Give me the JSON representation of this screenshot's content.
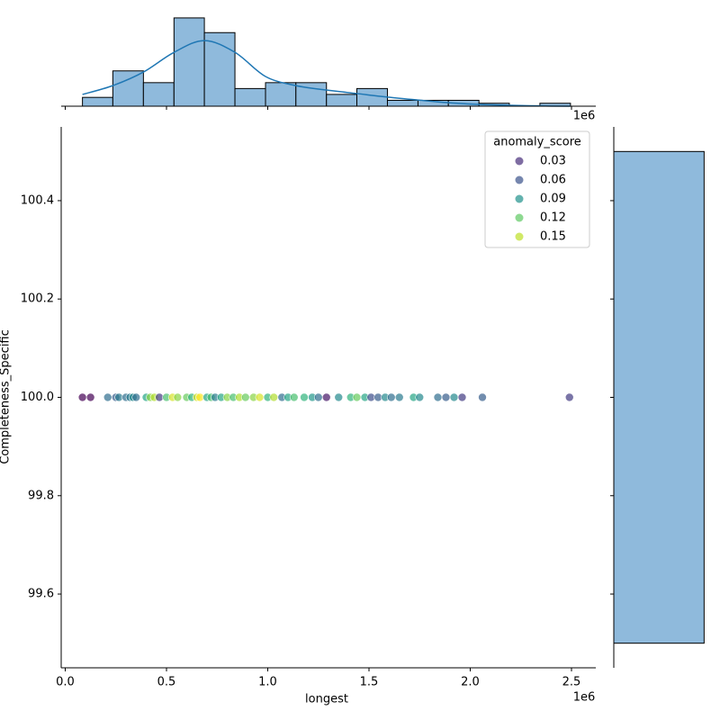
{
  "chart_data": {
    "type": "joint-scatter",
    "x_label": "longest",
    "y_label": "Completeness_Specific",
    "x_offset_label": "1e6",
    "xlim": [
      -20000,
      2620000
    ],
    "ylim": [
      99.45,
      100.55
    ],
    "xticks": [
      {
        "value": 0,
        "label": "0.0"
      },
      {
        "value": 500000,
        "label": "0.5"
      },
      {
        "value": 1000000,
        "label": "1.0"
      },
      {
        "value": 1500000,
        "label": "1.5"
      },
      {
        "value": 2000000,
        "label": "2.0"
      },
      {
        "value": 2500000,
        "label": "2.5"
      }
    ],
    "yticks": [
      99.6,
      99.8,
      {
        "value": 100,
        "label": "100.0"
      },
      100.2,
      100.4
    ],
    "points": {
      "x": [
        85000,
        125000,
        210000,
        250000,
        265000,
        300000,
        320000,
        335000,
        350000,
        400000,
        420000,
        440000,
        465000,
        500000,
        530000,
        555000,
        600000,
        625000,
        650000,
        665000,
        700000,
        720000,
        740000,
        770000,
        800000,
        830000,
        860000,
        890000,
        930000,
        960000,
        1000000,
        1030000,
        1070000,
        1100000,
        1130000,
        1180000,
        1220000,
        1250000,
        1290000,
        1350000,
        1410000,
        1440000,
        1480000,
        1510000,
        1545000,
        1580000,
        1610000,
        1650000,
        1720000,
        1750000,
        1840000,
        1880000,
        1920000,
        1960000,
        2060000,
        2490000
      ],
      "y": [
        100,
        100,
        100,
        100,
        100,
        100,
        100,
        100,
        100,
        100,
        100,
        100,
        100,
        100,
        100,
        100,
        100,
        100,
        100,
        100,
        100,
        100,
        100,
        100,
        100,
        100,
        100,
        100,
        100,
        100,
        100,
        100,
        100,
        100,
        100,
        100,
        100,
        100,
        100,
        100,
        100,
        100,
        100,
        100,
        100,
        100,
        100,
        100,
        100,
        100,
        100,
        100,
        100,
        100,
        100,
        100
      ],
      "hue": [
        0.0,
        0.0,
        0.06,
        0.05,
        0.07,
        0.06,
        0.07,
        0.08,
        0.06,
        0.1,
        0.14,
        0.15,
        0.03,
        0.12,
        0.16,
        0.14,
        0.13,
        0.11,
        0.16,
        0.17,
        0.1,
        0.12,
        0.07,
        0.1,
        0.14,
        0.12,
        0.15,
        0.13,
        0.14,
        0.16,
        0.11,
        0.15,
        0.06,
        0.1,
        0.12,
        0.11,
        0.09,
        0.06,
        0.01,
        0.08,
        0.11,
        0.13,
        0.1,
        0.04,
        0.05,
        0.08,
        0.06,
        0.07,
        0.1,
        0.08,
        0.06,
        0.05,
        0.08,
        0.03,
        0.05,
        0.03
      ]
    },
    "legend": {
      "title": "anomaly_score",
      "labels": [
        "0.03",
        "0.06",
        "0.09",
        "0.12",
        "0.15"
      ],
      "colors": [
        "#472d7b",
        "#3b528b",
        "#21918c",
        "#5ec962",
        "#bddf26"
      ]
    },
    "top_hist": {
      "bins": [
        85000,
        235000,
        386000,
        537000,
        687000,
        838000,
        989000,
        1139000,
        1290000,
        1440000,
        1591000,
        1742000,
        1892000,
        2043000,
        2193000,
        2344000,
        2495000
      ],
      "counts": [
        3,
        12,
        8,
        30,
        25,
        6,
        8,
        8,
        4,
        6,
        2,
        2,
        2,
        1,
        0,
        1
      ],
      "ylim": [
        0,
        31.5
      ],
      "color": "#8fbadc",
      "kde_x": [
        85000,
        235000,
        386000,
        537000,
        687000,
        838000,
        989000,
        1139000,
        1290000,
        1440000,
        1591000,
        1742000,
        1892000,
        2043000,
        2193000,
        2344000,
        2495000
      ],
      "kde_y": [
        4.0,
        7.0,
        11.6,
        18.3,
        22.3,
        18.3,
        10.1,
        7.0,
        5.5,
        4.3,
        3.1,
        2.1,
        1.2,
        0.6,
        0.3,
        0.1,
        0
      ],
      "kde_color": "#1f77b4"
    },
    "right_hist": {
      "bins": [
        99.5,
        100.5
      ],
      "counts": [
        118
      ],
      "xlim": [
        0,
        127
      ],
      "color": "#8fbadc"
    }
  }
}
